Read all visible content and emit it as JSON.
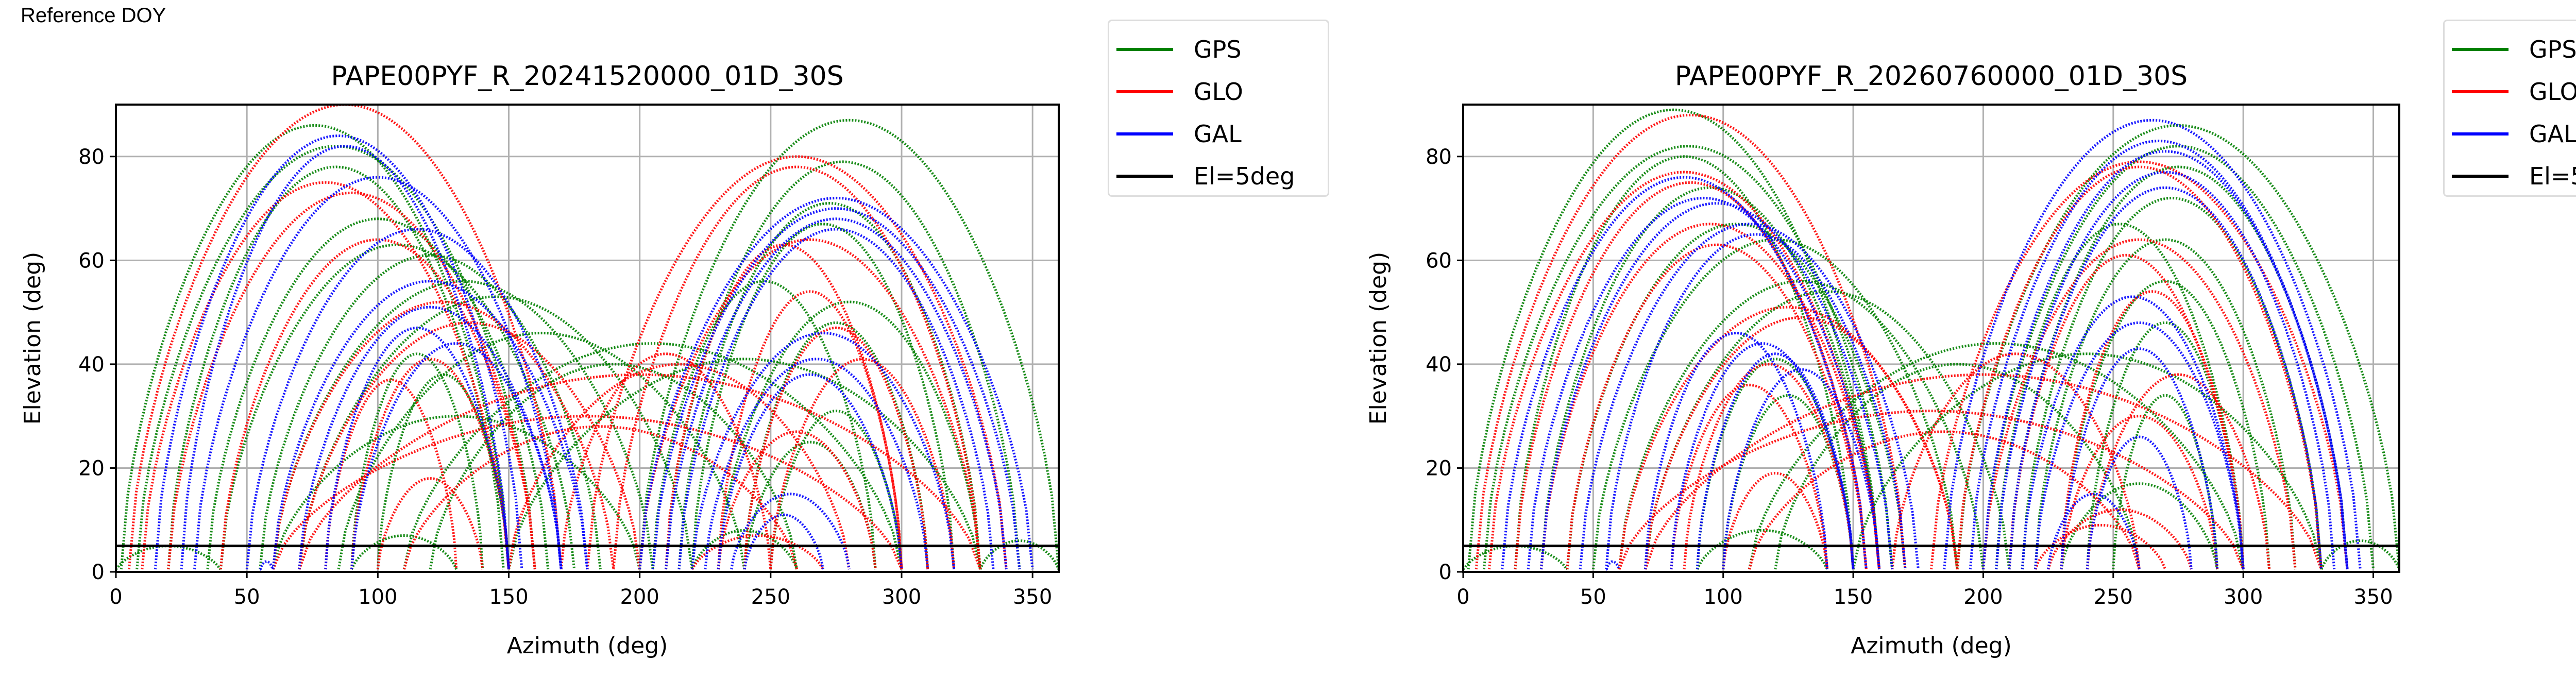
{
  "header": {
    "reference_label": "Reference DOY"
  },
  "legend": [
    {
      "label": "GPS",
      "color": "#008000"
    },
    {
      "label": "GLO",
      "color": "#ff0000"
    },
    {
      "label": "GAL",
      "color": "#0000ff"
    },
    {
      "label": "El=5deg",
      "color": "#000000"
    }
  ],
  "chart_data": [
    {
      "type": "scatter",
      "title": "PAPE00PYF_R_20241520000_01D_30S",
      "xlabel": "Azimuth (deg)",
      "ylabel": "Elevation (deg)",
      "xlim": [
        0,
        360
      ],
      "ylim": [
        0,
        90
      ],
      "xticks": [
        "0",
        "50",
        "100",
        "150",
        "200",
        "250",
        "300",
        "350"
      ],
      "yticks": [
        "0",
        "20",
        "40",
        "60",
        "80"
      ],
      "grid": true,
      "reference_line": {
        "label": "El=5deg",
        "y": 5
      },
      "series": [
        {
          "name": "GPS",
          "tracks": [
            [
              2,
              150,
              86
            ],
            [
              8,
              160,
              82
            ],
            [
              20,
              148,
              78
            ],
            [
              35,
              165,
              68
            ],
            [
              40,
              175,
              63
            ],
            [
              55,
              185,
              61
            ],
            [
              60,
              205,
              56
            ],
            [
              70,
              220,
              53
            ],
            [
              90,
              140,
              42
            ],
            [
              100,
              150,
              38
            ],
            [
              85,
              240,
              46
            ],
            [
              110,
              300,
              44
            ],
            [
              150,
              330,
              41
            ],
            [
              200,
              360,
              87
            ],
            [
              210,
              345,
              79
            ],
            [
              215,
              330,
              71
            ],
            [
              220,
              320,
              67
            ],
            [
              205,
              290,
              56
            ],
            [
              230,
              330,
              52
            ],
            [
              240,
              310,
              48
            ],
            [
              250,
              300,
              31
            ],
            [
              240,
              290,
              25
            ],
            [
              220,
              260,
              8
            ],
            [
              90,
              130,
              7
            ],
            [
              0,
              40,
              5
            ],
            [
              330,
              360,
              6
            ],
            [
              120,
              260,
              40
            ],
            [
              60,
              200,
              30
            ]
          ]
        },
        {
          "name": "GLO",
          "tracks": [
            [
              5,
              170,
              90
            ],
            [
              10,
              150,
              75
            ],
            [
              20,
              160,
              73
            ],
            [
              40,
              160,
              64
            ],
            [
              60,
              190,
              52
            ],
            [
              70,
              200,
              48
            ],
            [
              90,
              150,
              41
            ],
            [
              80,
              130,
              37
            ],
            [
              100,
              140,
              18
            ],
            [
              180,
              340,
              80
            ],
            [
              190,
              330,
              78
            ],
            [
              200,
              330,
              64
            ],
            [
              210,
              300,
              63
            ],
            [
              230,
              300,
              54
            ],
            [
              240,
              310,
              47
            ],
            [
              250,
              320,
              41
            ],
            [
              230,
              290,
              27
            ],
            [
              220,
              270,
              7
            ],
            [
              70,
              330,
              38
            ],
            [
              60,
              300,
              30
            ],
            [
              150,
              280,
              40
            ],
            [
              110,
              260,
              28
            ],
            [
              170,
              250,
              42
            ]
          ]
        },
        {
          "name": "GAL",
          "tracks": [
            [
              15,
              155,
              84
            ],
            [
              25,
              150,
              82
            ],
            [
              30,
              170,
              76
            ],
            [
              50,
              180,
              66
            ],
            [
              60,
              180,
              56
            ],
            [
              70,
              170,
              51
            ],
            [
              80,
              150,
              47
            ],
            [
              90,
              170,
              44
            ],
            [
              200,
              350,
              72
            ],
            [
              205,
              345,
              70
            ],
            [
              210,
              340,
              68
            ],
            [
              215,
              335,
              66
            ],
            [
              220,
              320,
              46
            ],
            [
              225,
              310,
              41
            ],
            [
              230,
              300,
              38
            ],
            [
              235,
              280,
              15
            ],
            [
              240,
              270,
              11
            ],
            [
              55,
              60,
              2
            ]
          ]
        }
      ]
    },
    {
      "type": "scatter",
      "title": "PAPE00PYF_R_20260760000_01D_30S",
      "xlabel": "Azimuth (deg)",
      "ylabel": "Elevation (deg)",
      "xlim": [
        0,
        360
      ],
      "ylim": [
        0,
        90
      ],
      "xticks": [
        "0",
        "50",
        "100",
        "150",
        "200",
        "250",
        "300",
        "350"
      ],
      "yticks": [
        "0",
        "20",
        "40",
        "60",
        "80"
      ],
      "grid": true,
      "reference_line": {
        "label": "El=5deg",
        "y": 5
      },
      "series": [
        {
          "name": "GPS",
          "tracks": [
            [
              2,
              160,
              89
            ],
            [
              8,
              165,
              82
            ],
            [
              20,
              150,
              80
            ],
            [
              30,
              160,
              74
            ],
            [
              40,
              170,
              67
            ],
            [
              50,
              190,
              64
            ],
            [
              60,
              200,
              56
            ],
            [
              70,
              210,
              54
            ],
            [
              90,
              150,
              41
            ],
            [
              100,
              150,
              34
            ],
            [
              90,
              140,
              8
            ],
            [
              110,
              300,
              44
            ],
            [
              150,
              330,
              42
            ],
            [
              190,
              360,
              86
            ],
            [
              200,
              350,
              82
            ],
            [
              210,
              340,
              78
            ],
            [
              215,
              330,
              72
            ],
            [
              205,
              300,
              67
            ],
            [
              220,
              320,
              64
            ],
            [
              230,
              310,
              56
            ],
            [
              240,
              300,
              48
            ],
            [
              250,
              290,
              34
            ],
            [
              230,
              290,
              17
            ],
            [
              0,
              40,
              5
            ],
            [
              330,
              360,
              6
            ],
            [
              120,
              260,
              40
            ]
          ]
        },
        {
          "name": "GLO",
          "tracks": [
            [
              5,
              170,
              88
            ],
            [
              10,
              160,
              77
            ],
            [
              20,
              155,
              75
            ],
            [
              30,
              160,
              67
            ],
            [
              40,
              155,
              63
            ],
            [
              60,
              190,
              51
            ],
            [
              70,
              190,
              49
            ],
            [
              85,
              150,
              40
            ],
            [
              80,
              140,
              36
            ],
            [
              100,
              140,
              19
            ],
            [
              180,
              340,
              79
            ],
            [
              190,
              330,
              78
            ],
            [
              200,
              320,
              64
            ],
            [
              210,
              300,
              61
            ],
            [
              230,
              300,
              54
            ],
            [
              240,
              310,
              38
            ],
            [
              230,
              290,
              30
            ],
            [
              225,
              280,
              12
            ],
            [
              220,
              270,
              9
            ],
            [
              70,
              330,
              38
            ],
            [
              60,
              300,
              31
            ],
            [
              110,
              260,
              27
            ],
            [
              165,
              260,
              42
            ]
          ]
        },
        {
          "name": "GAL",
          "tracks": [
            [
              15,
              155,
              76
            ],
            [
              25,
              160,
              72
            ],
            [
              30,
              165,
              71
            ],
            [
              45,
              175,
              67
            ],
            [
              55,
              170,
              65
            ],
            [
              70,
              140,
              46
            ],
            [
              80,
              150,
              44
            ],
            [
              90,
              150,
              42
            ],
            [
              100,
              160,
              39
            ],
            [
              185,
              345,
              87
            ],
            [
              195,
              340,
              83
            ],
            [
              200,
              340,
              81
            ],
            [
              205,
              335,
              77
            ],
            [
              210,
              330,
              74
            ],
            [
              215,
              300,
              53
            ],
            [
              220,
              300,
              48
            ],
            [
              230,
              290,
              43
            ],
            [
              240,
              280,
              26
            ],
            [
              225,
              260,
              15
            ],
            [
              55,
              60,
              2
            ]
          ]
        }
      ]
    }
  ]
}
